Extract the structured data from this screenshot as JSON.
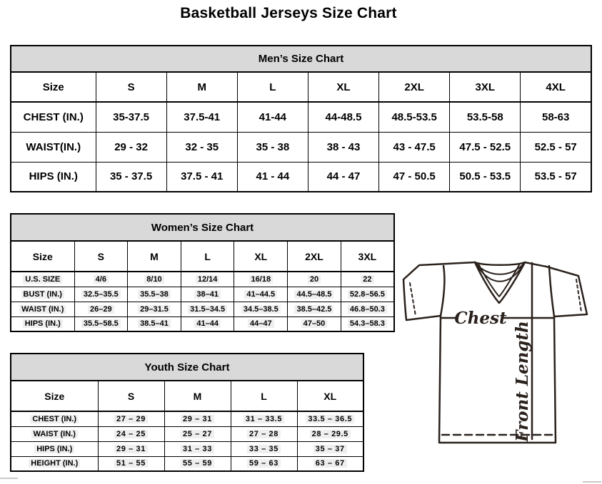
{
  "page": {
    "title": "Basketball Jerseys Size Chart"
  },
  "colors": {
    "table_header_bg": "#d9d9d9",
    "table_border": "#000000",
    "line_art": "#2a211c"
  },
  "tables": [
    {
      "id": "men",
      "title": "Men’s Size Chart",
      "columns": [
        "Size",
        "S",
        "M",
        "L",
        "XL",
        "2XL",
        "3XL",
        "4XL"
      ],
      "rows": [
        {
          "label": "CHEST (IN.)",
          "values": [
            "35-37.5",
            "37.5-41",
            "41-44",
            "44-48.5",
            "48.5-53.5",
            "53.5-58",
            "58-63"
          ]
        },
        {
          "label": "WAIST(IN.)",
          "values": [
            "29 - 32",
            "32 - 35",
            "35 - 38",
            "38 - 43",
            "43 - 47.5",
            "47.5 - 52.5",
            "52.5 - 57"
          ]
        },
        {
          "label": "HIPS (IN.)",
          "values": [
            "35 - 37.5",
            "37.5 - 41",
            "41 - 44",
            "44 - 47",
            "47 - 50.5",
            "50.5 - 53.5",
            "53.5 - 57"
          ]
        }
      ]
    },
    {
      "id": "women",
      "title": "Women’s Size Chart",
      "columns": [
        "Size",
        "S",
        "M",
        "L",
        "XL",
        "2XL",
        "3XL"
      ],
      "rows": [
        {
          "label": "U.S. SIZE",
          "values": [
            "4/6",
            "8/10",
            "12/14",
            "16/18",
            "20",
            "22"
          ]
        },
        {
          "label": "BUST (IN.)",
          "values": [
            "32.5–35.5",
            "35.5–38",
            "38–41",
            "41–44.5",
            "44.5–48.5",
            "52.8–56.5"
          ]
        },
        {
          "label": "WAIST (IN.)",
          "values": [
            "26–29",
            "29–31.5",
            "31.5–34.5",
            "34.5–38.5",
            "38.5–42.5",
            "46.8–50.3"
          ]
        },
        {
          "label": "HIPS (IN.)",
          "values": [
            "35.5–58.5",
            "38.5–41",
            "41–44",
            "44–47",
            "47–50",
            "54.3–58.3"
          ]
        }
      ]
    },
    {
      "id": "youth",
      "title": "Youth Size Chart",
      "columns": [
        "Size",
        "S",
        "M",
        "L",
        "XL"
      ],
      "rows": [
        {
          "label": "CHEST (IN.)",
          "values": [
            "27 – 29",
            "29 – 31",
            "31 – 33.5",
            "33.5 – 36.5"
          ]
        },
        {
          "label": "WAIST (IN.)",
          "values": [
            "24 – 25",
            "25 – 27",
            "27 – 28",
            "28 – 29.5"
          ]
        },
        {
          "label": "HIPS (IN.)",
          "values": [
            "29 – 31",
            "31 – 33",
            "33 – 35",
            "35 – 37"
          ]
        },
        {
          "label": "HEIGHT (IN.)",
          "values": [
            "51 – 55",
            "55 – 59",
            "59 – 63",
            "63 – 67"
          ]
        }
      ]
    }
  ],
  "diagram": {
    "chest_label": "Chest",
    "front_length_label": "Front Length"
  }
}
